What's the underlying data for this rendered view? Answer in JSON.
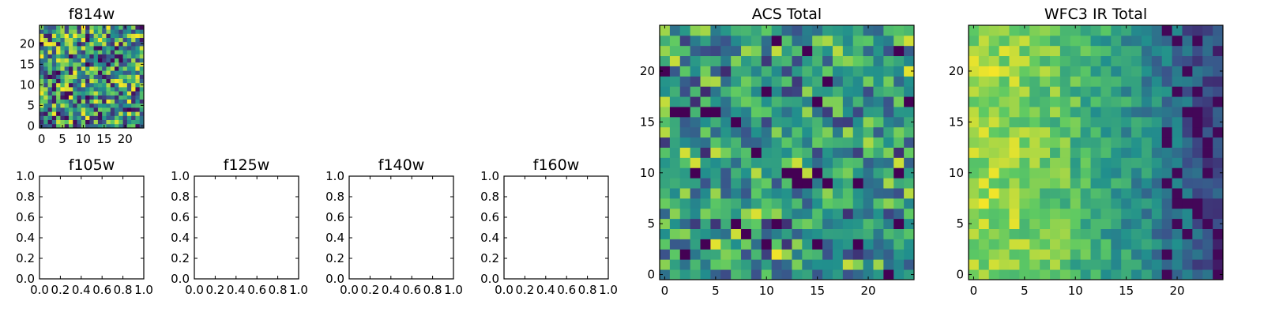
{
  "chart_data": [
    {
      "type": "heatmap",
      "title": "f814w",
      "x_ticks": [
        "0",
        "5",
        "10",
        "15",
        "20"
      ],
      "y_ticks": [
        "0",
        "5",
        "10",
        "15",
        "20"
      ],
      "xlim": [
        -0.5,
        24.5
      ],
      "ylim": [
        -0.5,
        24.5
      ],
      "grid_size": [
        25,
        25
      ],
      "colormap": [
        "#440154",
        "#3b528b",
        "#21908d",
        "#5dc963",
        "#fde725"
      ],
      "texture": "uniform-noise",
      "seed": 11
    },
    {
      "type": "empty",
      "title": "f105w",
      "x_ticks": [
        "0.0",
        "0.2",
        "0.4",
        "0.6",
        "0.8",
        "1.0"
      ],
      "y_ticks": [
        "0.0",
        "0.2",
        "0.4",
        "0.6",
        "0.8",
        "1.0"
      ],
      "xlim": [
        0,
        1
      ],
      "ylim": [
        0,
        1
      ]
    },
    {
      "type": "empty",
      "title": "f125w",
      "x_ticks": [
        "0.0",
        "0.2",
        "0.4",
        "0.6",
        "0.8",
        "1.0"
      ],
      "y_ticks": [
        "0.0",
        "0.2",
        "0.4",
        "0.6",
        "0.8",
        "1.0"
      ],
      "xlim": [
        0,
        1
      ],
      "ylim": [
        0,
        1
      ]
    },
    {
      "type": "empty",
      "title": "f140w",
      "x_ticks": [
        "0.0",
        "0.2",
        "0.4",
        "0.6",
        "0.8",
        "1.0"
      ],
      "y_ticks": [
        "0.0",
        "0.2",
        "0.4",
        "0.6",
        "0.8",
        "1.0"
      ],
      "xlim": [
        0,
        1
      ],
      "ylim": [
        0,
        1
      ]
    },
    {
      "type": "empty",
      "title": "f160w",
      "x_ticks": [
        "0.0",
        "0.2",
        "0.4",
        "0.6",
        "0.8",
        "1.0"
      ],
      "y_ticks": [
        "0.0",
        "0.2",
        "0.4",
        "0.6",
        "0.8",
        "1.0"
      ],
      "xlim": [
        0,
        1
      ],
      "ylim": [
        0,
        1
      ]
    },
    {
      "type": "heatmap",
      "title": "ACS Total",
      "x_ticks": [
        "0",
        "5",
        "10",
        "15",
        "20"
      ],
      "y_ticks": [
        "0",
        "5",
        "10",
        "15",
        "20"
      ],
      "xlim": [
        -0.5,
        24.5
      ],
      "ylim": [
        -0.5,
        24.5
      ],
      "grid_size": [
        25,
        25
      ],
      "colormap": [
        "#440154",
        "#3b528b",
        "#21908d",
        "#5dc963",
        "#fde725"
      ],
      "texture": "noise-centered",
      "seed": 23
    },
    {
      "type": "heatmap",
      "title": "WFC3 IR Total",
      "x_ticks": [
        "0",
        "5",
        "10",
        "15",
        "20"
      ],
      "y_ticks": [
        "0",
        "5",
        "10",
        "15",
        "20"
      ],
      "xlim": [
        -0.5,
        24.5
      ],
      "ylim": [
        -0.5,
        24.5
      ],
      "grid_size": [
        25,
        25
      ],
      "colormap": [
        "#440154",
        "#3b528b",
        "#21908d",
        "#5dc963",
        "#fde725"
      ],
      "texture": "gradient-left-bright-right-dark",
      "seed": 37
    }
  ]
}
